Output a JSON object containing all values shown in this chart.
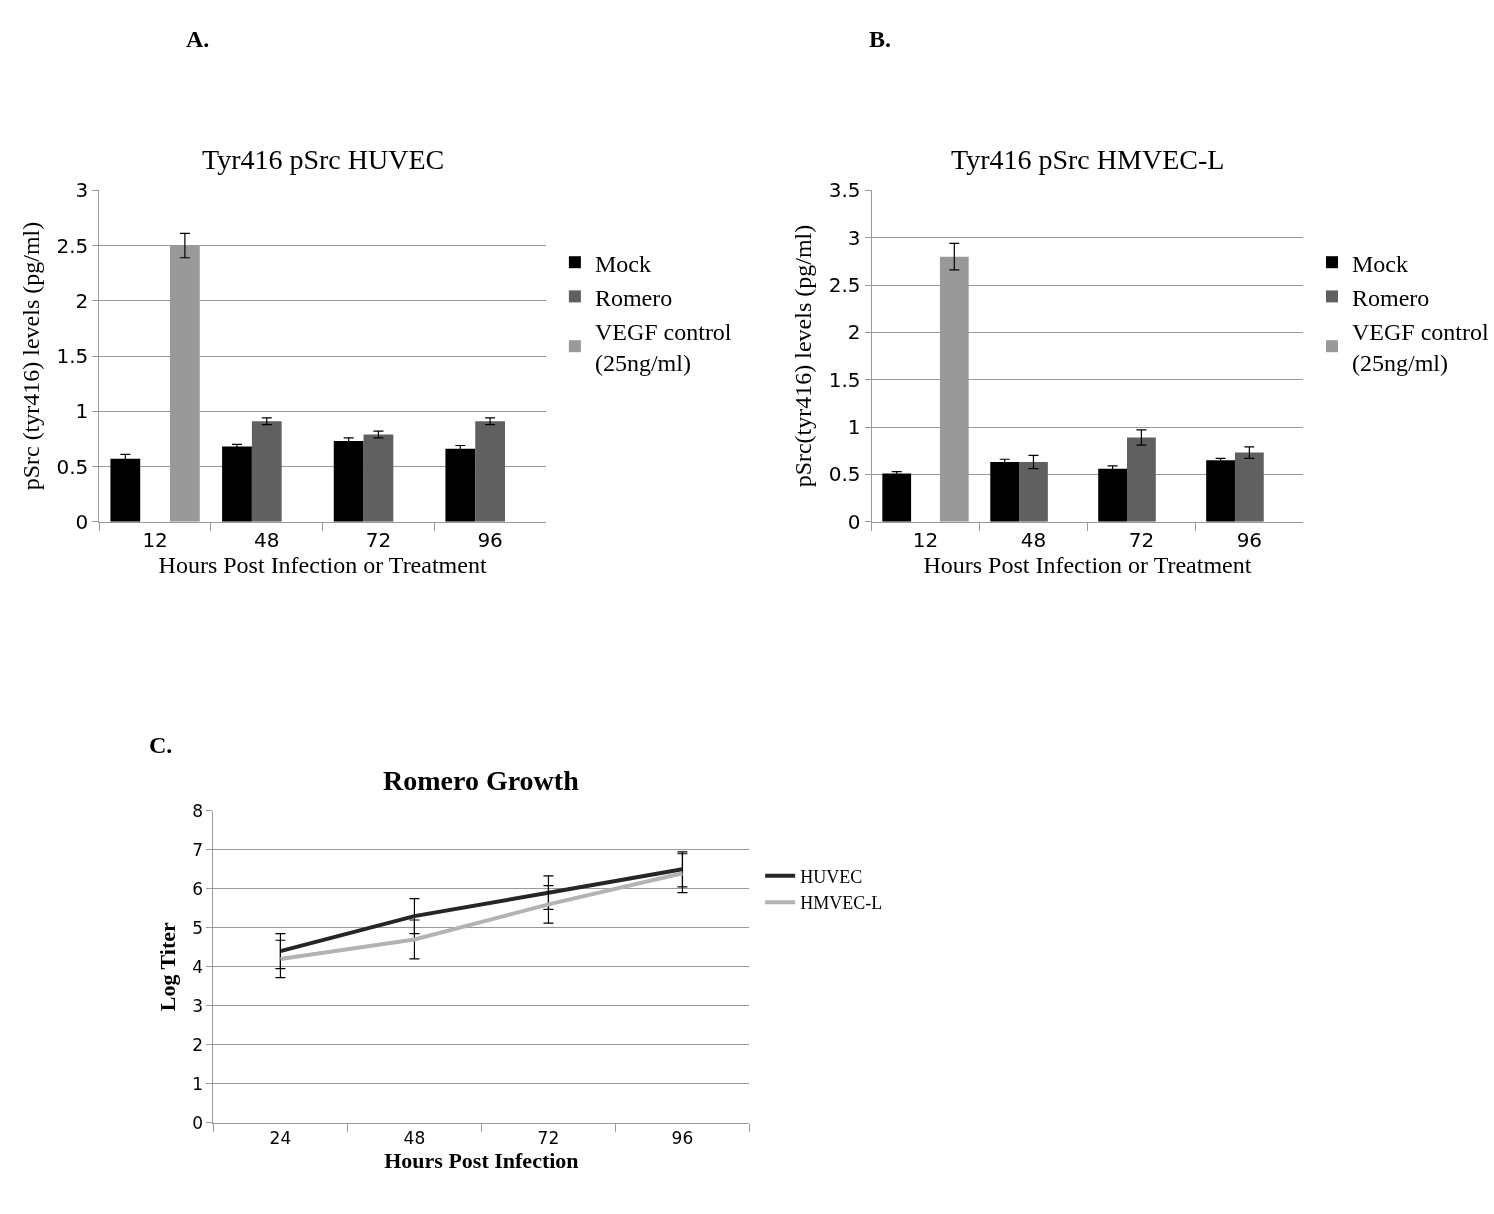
{
  "chart_data": [
    {
      "type": "bar",
      "title": "Tyr416 pSrc HUVEC",
      "xlabel": "Hours Post Infection or Treatment",
      "ylabel": "pSrc (tyr416) levels (pg/ml)",
      "annotations": [
        "A."
      ],
      "categories": [
        "12",
        "48",
        "72",
        "96"
      ],
      "series": [
        {
          "name": "Mock",
          "color": "#000000",
          "values": [
            0.57,
            0.68,
            0.73,
            0.66
          ],
          "errors": [
            0.04,
            0.02,
            0.03,
            0.03
          ]
        },
        {
          "name": "Romero",
          "color": "#606060",
          "values": [
            null,
            0.91,
            0.79,
            0.91
          ],
          "errors": [
            null,
            0.03,
            0.03,
            0.03
          ]
        },
        {
          "name": "VEGF control (25ng/ml)",
          "color": "#999999",
          "values": [
            2.5,
            null,
            null,
            null
          ],
          "errors": [
            0.11,
            null,
            null,
            null
          ]
        }
      ],
      "ylim": [
        0,
        3
      ],
      "yticks": [
        0,
        0.5,
        1,
        1.5,
        2,
        2.5,
        3
      ],
      "grid": "y",
      "legend": "right"
    },
    {
      "type": "bar",
      "title": "Tyr416 pSrc HMVEC-L",
      "xlabel": "Hours Post Infection or Treatment",
      "ylabel": "pSrc(tyr416) levels (pg/ml)",
      "annotations": [
        "B."
      ],
      "categories": [
        "12",
        "48",
        "72",
        "96"
      ],
      "series": [
        {
          "name": "Mock",
          "color": "#000000",
          "values": [
            0.51,
            0.63,
            0.56,
            0.65
          ],
          "errors": [
            0.02,
            0.03,
            0.03,
            0.02
          ]
        },
        {
          "name": "Romero",
          "color": "#606060",
          "values": [
            null,
            0.63,
            0.89,
            0.73
          ],
          "errors": [
            null,
            0.07,
            0.08,
            0.06
          ]
        },
        {
          "name": "VEGF control (25ng/ml)",
          "color": "#999999",
          "values": [
            2.8,
            null,
            null,
            null
          ],
          "errors": [
            0.14,
            null,
            null,
            null
          ]
        }
      ],
      "ylim": [
        0,
        3.5
      ],
      "yticks": [
        0,
        0.5,
        1,
        1.5,
        2,
        2.5,
        3,
        3.5
      ],
      "grid": "y",
      "legend": "right"
    },
    {
      "type": "line",
      "title": "Romero Growth",
      "xlabel": "Hours Post Infection",
      "ylabel": "Log Titer",
      "annotations": [
        "C."
      ],
      "categories": [
        "24",
        "48",
        "72",
        "96"
      ],
      "series": [
        {
          "name": "HUVEC",
          "color": "#262626",
          "values": [
            4.4,
            5.3,
            5.9,
            6.5
          ],
          "errors": [
            0.45,
            0.45,
            0.43,
            0.45
          ]
        },
        {
          "name": "HMVEC-L",
          "color": "#b3b3b3",
          "values": [
            4.2,
            4.7,
            5.6,
            6.4
          ],
          "errors": [
            0.48,
            0.5,
            0.48,
            0.5
          ]
        }
      ],
      "ylim": [
        0,
        8
      ],
      "yticks": [
        0,
        1,
        2,
        3,
        4,
        5,
        6,
        7,
        8
      ],
      "grid": "y",
      "legend": "right",
      "marker": "none",
      "line_style": "solid"
    }
  ]
}
